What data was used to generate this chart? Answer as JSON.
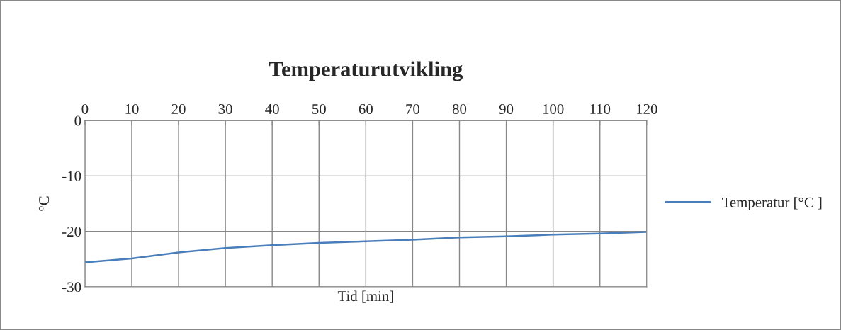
{
  "chart_data": {
    "type": "line",
    "title": "Temperaturutvikling",
    "xlabel": "Tid [min]",
    "ylabel": "°C",
    "x": [
      0,
      10,
      20,
      30,
      40,
      50,
      60,
      70,
      80,
      90,
      100,
      110,
      120
    ],
    "series": [
      {
        "name": "Temperatur [°C ]",
        "color": "#4a7ebb",
        "values": [
          -25.6,
          -24.9,
          -23.8,
          -23.0,
          -22.5,
          -22.1,
          -21.8,
          -21.5,
          -21.1,
          -20.9,
          -20.6,
          -20.4,
          -20.1
        ]
      }
    ],
    "xlim": [
      0,
      120
    ],
    "xticks": [
      0,
      10,
      20,
      30,
      40,
      50,
      60,
      70,
      80,
      90,
      100,
      110,
      120
    ],
    "ylim": [
      -30,
      0
    ],
    "yticks": [
      0,
      -10,
      -20,
      -30
    ],
    "grid": true,
    "legend": "right",
    "marker": "none",
    "line_style": "solid"
  }
}
